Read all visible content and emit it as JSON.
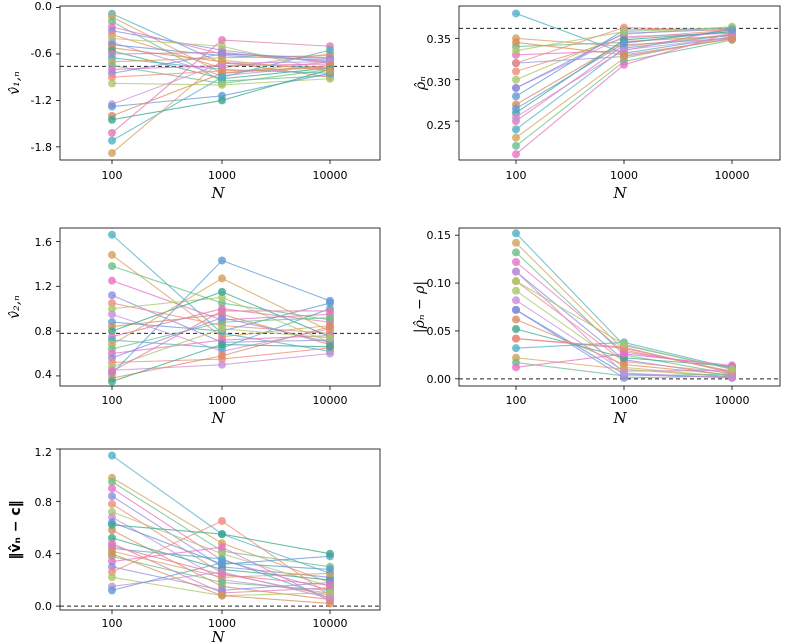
{
  "palette": [
    "#4fb0c6",
    "#d4a35a",
    "#6bbf8a",
    "#e872c8",
    "#8c8fe0",
    "#f08c7a",
    "#a8c96a",
    "#c98fd8",
    "#5f9bd5",
    "#d98c5c",
    "#3aa88e",
    "#e07ab0"
  ],
  "chart_data": [
    {
      "id": "v1",
      "type": "line",
      "ylabel": "v̂₁,ₙ",
      "xlabel": "N",
      "categories": [
        "100",
        "1000",
        "10000"
      ],
      "yticks": [
        0.0,
        -0.6,
        -1.2,
        -1.8
      ],
      "ytick_labels": [
        "0.0",
        "-0.6",
        "-1.2",
        "-1.8"
      ],
      "ylim": [
        -1.97,
        0.02
      ],
      "reference": -0.76,
      "series": [
        {
          "values": [
            -0.08,
            -0.72,
            -0.78
          ]
        },
        {
          "values": [
            -0.12,
            -0.85,
            -0.7
          ]
        },
        {
          "values": [
            -0.18,
            -0.95,
            -0.88
          ]
        },
        {
          "values": [
            -0.25,
            -0.6,
            -0.65
          ]
        },
        {
          "values": [
            -0.3,
            -0.55,
            -0.72
          ]
        },
        {
          "values": [
            -0.35,
            -0.78,
            -0.6
          ]
        },
        {
          "values": [
            -0.4,
            -0.5,
            -0.82
          ]
        },
        {
          "values": [
            -0.45,
            -0.88,
            -0.75
          ]
        },
        {
          "values": [
            -0.48,
            -0.62,
            -0.68
          ]
        },
        {
          "values": [
            -0.52,
            -0.7,
            -0.9
          ]
        },
        {
          "values": [
            -0.56,
            -0.92,
            -0.78
          ]
        },
        {
          "values": [
            -0.6,
            -0.58,
            -0.7
          ]
        },
        {
          "values": [
            -0.65,
            -0.8,
            -0.85
          ]
        },
        {
          "values": [
            -0.7,
            -0.65,
            -0.62
          ]
        },
        {
          "values": [
            -0.75,
            -0.98,
            -0.8
          ]
        },
        {
          "values": [
            -0.8,
            -0.75,
            -0.73
          ]
        },
        {
          "values": [
            -0.85,
            -0.6,
            -0.66
          ]
        },
        {
          "values": [
            -0.9,
            -0.82,
            -0.78
          ]
        },
        {
          "values": [
            -0.98,
            -1.0,
            -0.92
          ]
        },
        {
          "values": [
            -1.25,
            -0.72,
            -0.7
          ]
        },
        {
          "values": [
            -1.28,
            -1.14,
            -0.85
          ]
        },
        {
          "values": [
            -1.4,
            -0.85,
            -0.75
          ]
        },
        {
          "values": [
            -1.45,
            -1.2,
            -0.8
          ]
        },
        {
          "values": [
            -1.62,
            -0.42,
            -0.5
          ]
        },
        {
          "values": [
            -1.72,
            -0.9,
            -0.55
          ]
        },
        {
          "values": [
            -1.88,
            -0.68,
            -0.82
          ]
        }
      ]
    },
    {
      "id": "rho",
      "type": "line",
      "ylabel": "ρ̂ₙ",
      "xlabel": "N",
      "categories": [
        "100",
        "1000",
        "10000"
      ],
      "yticks": [
        0.25,
        0.3,
        0.35
      ],
      "ytick_labels": [
        "0.25",
        "0.30",
        "0.35"
      ],
      "ylim": [
        0.203,
        0.389
      ],
      "reference": 0.362,
      "series": [
        {
          "values": [
            0.38,
            0.332,
            0.352
          ]
        },
        {
          "values": [
            0.35,
            0.34,
            0.355
          ]
        },
        {
          "values": [
            0.34,
            0.345,
            0.358
          ]
        },
        {
          "values": [
            0.33,
            0.335,
            0.362
          ]
        },
        {
          "values": [
            0.32,
            0.328,
            0.35
          ]
        },
        {
          "values": [
            0.31,
            0.35,
            0.36
          ]
        },
        {
          "values": [
            0.3,
            0.355,
            0.364
          ]
        },
        {
          "values": [
            0.29,
            0.352,
            0.356
          ]
        },
        {
          "values": [
            0.28,
            0.36,
            0.362
          ]
        },
        {
          "values": [
            0.27,
            0.346,
            0.353
          ]
        },
        {
          "values": [
            0.26,
            0.348,
            0.358
          ]
        },
        {
          "values": [
            0.25,
            0.342,
            0.35
          ]
        },
        {
          "values": [
            0.24,
            0.338,
            0.354
          ]
        },
        {
          "values": [
            0.23,
            0.326,
            0.352
          ]
        },
        {
          "values": [
            0.22,
            0.322,
            0.348
          ]
        },
        {
          "values": [
            0.21,
            0.318,
            0.357
          ]
        },
        {
          "values": [
            0.29,
            0.356,
            0.361
          ]
        },
        {
          "values": [
            0.32,
            0.363,
            0.359
          ]
        },
        {
          "values": [
            0.335,
            0.358,
            0.363
          ]
        },
        {
          "values": [
            0.255,
            0.336,
            0.351
          ]
        },
        {
          "values": [
            0.265,
            0.344,
            0.36
          ]
        },
        {
          "values": [
            0.345,
            0.33,
            0.349
          ]
        }
      ]
    },
    {
      "id": "v2",
      "type": "line",
      "ylabel": "v̂₂,ₙ",
      "xlabel": "N",
      "categories": [
        "100",
        "1000",
        "10000"
      ],
      "yticks": [
        0.4,
        0.8,
        1.2,
        1.6
      ],
      "ytick_labels": [
        "0.4",
        "0.8",
        "1.2",
        "1.6"
      ],
      "ylim": [
        0.31,
        1.72
      ],
      "reference": 0.78,
      "series": [
        {
          "values": [
            1.66,
            0.78,
            0.62
          ]
        },
        {
          "values": [
            1.48,
            0.75,
            0.85
          ]
        },
        {
          "values": [
            1.38,
            1.05,
            0.9
          ]
        },
        {
          "values": [
            1.25,
            0.9,
            0.95
          ]
        },
        {
          "values": [
            1.12,
            0.7,
            0.72
          ]
        },
        {
          "values": [
            1.05,
            0.85,
            0.78
          ]
        },
        {
          "values": [
            1.0,
            1.1,
            0.7
          ]
        },
        {
          "values": [
            0.95,
            0.62,
            0.82
          ]
        },
        {
          "values": [
            0.88,
            0.8,
            1.05
          ]
        },
        {
          "values": [
            0.84,
            0.95,
            0.68
          ]
        },
        {
          "values": [
            0.8,
            1.15,
            0.75
          ]
        },
        {
          "values": [
            0.75,
            1.0,
            0.88
          ]
        },
        {
          "values": [
            0.72,
            0.65,
            1.0
          ]
        },
        {
          "values": [
            0.68,
            1.27,
            0.8
          ]
        },
        {
          "values": [
            0.64,
            0.88,
            0.92
          ]
        },
        {
          "values": [
            0.6,
            0.72,
            0.76
          ]
        },
        {
          "values": [
            0.56,
            0.92,
            0.7
          ]
        },
        {
          "values": [
            0.52,
            0.55,
            0.65
          ]
        },
        {
          "values": [
            0.48,
            0.82,
            0.74
          ]
        },
        {
          "values": [
            0.45,
            0.5,
            0.6
          ]
        },
        {
          "values": [
            0.42,
            1.43,
            1.07
          ]
        },
        {
          "values": [
            0.38,
            0.58,
            0.84
          ]
        },
        {
          "values": [
            0.35,
            0.68,
            0.66
          ]
        },
        {
          "values": [
            0.44,
            0.98,
            0.98
          ]
        }
      ]
    },
    {
      "id": "rhoerr",
      "type": "line",
      "ylabel": "|ρ̂ₙ − ρ|",
      "xlabel": "N",
      "categories": [
        "100",
        "1000",
        "10000"
      ],
      "yticks": [
        0.0,
        0.05,
        0.1,
        0.15
      ],
      "ytick_labels": [
        "0.00",
        "0.05",
        "0.10",
        "0.15"
      ],
      "ylim": [
        -0.0075,
        0.1575
      ],
      "reference": 0.0,
      "series": [
        {
          "values": [
            0.152,
            0.035,
            0.01
          ]
        },
        {
          "values": [
            0.142,
            0.03,
            0.008
          ]
        },
        {
          "values": [
            0.132,
            0.025,
            0.005
          ]
        },
        {
          "values": [
            0.122,
            0.028,
            0.012
          ]
        },
        {
          "values": [
            0.112,
            0.02,
            0.003
          ]
        },
        {
          "values": [
            0.102,
            0.018,
            0.006
          ]
        },
        {
          "values": [
            0.092,
            0.012,
            0.002
          ]
        },
        {
          "values": [
            0.082,
            0.008,
            0.009
          ]
        },
        {
          "values": [
            0.072,
            0.005,
            0.001
          ]
        },
        {
          "values": [
            0.062,
            0.015,
            0.004
          ]
        },
        {
          "values": [
            0.052,
            0.022,
            0.013
          ]
        },
        {
          "values": [
            0.042,
            0.032,
            0.007
          ]
        },
        {
          "values": [
            0.032,
            0.038,
            0.011
          ]
        },
        {
          "values": [
            0.022,
            0.01,
            0.002
          ]
        },
        {
          "values": [
            0.017,
            0.003,
            0.005
          ]
        },
        {
          "values": [
            0.012,
            0.026,
            0.014
          ]
        },
        {
          "values": [
            0.072,
            0.001,
            0.003
          ]
        },
        {
          "values": [
            0.042,
            0.033,
            0.006
          ]
        },
        {
          "values": [
            0.102,
            0.036,
            0.01
          ]
        },
        {
          "values": [
            0.112,
            0.006,
            0.001
          ]
        }
      ]
    },
    {
      "id": "vnorm",
      "type": "line",
      "ylabel": "‖v̂ₙ − c‖",
      "xlabel": "N",
      "categories": [
        "100",
        "1000",
        "10000"
      ],
      "yticks": [
        0.0,
        0.4,
        0.8,
        1.2
      ],
      "ytick_labels": [
        "0.0",
        "0.4",
        "0.8",
        "1.2"
      ],
      "ylim": [
        -0.03,
        1.2
      ],
      "reference": 0.0,
      "series": [
        {
          "values": [
            1.15,
            0.55,
            0.25
          ]
        },
        {
          "values": [
            0.98,
            0.48,
            0.18
          ]
        },
        {
          "values": [
            0.95,
            0.42,
            0.3
          ]
        },
        {
          "values": [
            0.9,
            0.35,
            0.12
          ]
        },
        {
          "values": [
            0.84,
            0.3,
            0.22
          ]
        },
        {
          "values": [
            0.78,
            0.25,
            0.08
          ]
        },
        {
          "values": [
            0.72,
            0.4,
            0.15
          ]
        },
        {
          "values": [
            0.68,
            0.2,
            0.1
          ]
        },
        {
          "values": [
            0.64,
            0.32,
            0.38
          ]
        },
        {
          "values": [
            0.58,
            0.15,
            0.05
          ]
        },
        {
          "values": [
            0.52,
            0.28,
            0.2
          ]
        },
        {
          "values": [
            0.48,
            0.1,
            0.14
          ]
        },
        {
          "values": [
            0.44,
            0.36,
            0.06
          ]
        },
        {
          "values": [
            0.42,
            0.22,
            0.25
          ]
        },
        {
          "values": [
            0.38,
            0.18,
            0.12
          ]
        },
        {
          "values": [
            0.34,
            0.45,
            0.04
          ]
        },
        {
          "values": [
            0.3,
            0.12,
            0.18
          ]
        },
        {
          "values": [
            0.26,
            0.65,
            0.08
          ]
        },
        {
          "values": [
            0.22,
            0.08,
            0.1
          ]
        },
        {
          "values": [
            0.15,
            0.26,
            0.06
          ]
        },
        {
          "values": [
            0.12,
            0.33,
            0.28
          ]
        },
        {
          "values": [
            0.4,
            0.08,
            0.02
          ]
        },
        {
          "values": [
            0.62,
            0.55,
            0.4
          ]
        },
        {
          "values": [
            0.46,
            0.24,
            0.16
          ]
        }
      ]
    }
  ]
}
